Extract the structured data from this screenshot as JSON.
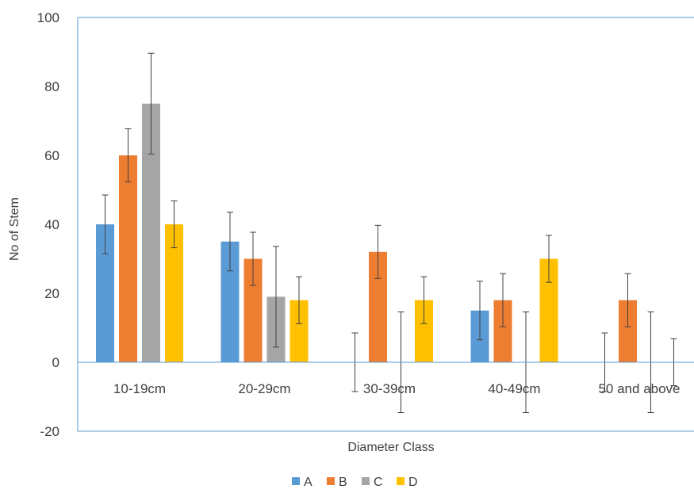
{
  "chart_data": {
    "type": "bar",
    "title": "",
    "xlabel": "Diameter Class",
    "ylabel": "No of Stem",
    "categories": [
      "10-19cm",
      "20-29cm",
      "30-39cm",
      "40-49cm",
      "50 and above"
    ],
    "ylim": [
      -20,
      100
    ],
    "yticks": [
      "-20",
      "0",
      "20",
      "40",
      "60",
      "80",
      "100"
    ],
    "grid": false,
    "legend_position": "bottom",
    "series": [
      {
        "name": "A",
        "color": "#5B9BD5",
        "values": [
          40,
          35,
          0,
          15,
          0
        ],
        "error": [
          8.5,
          8.5,
          8.5,
          8.5,
          8.5
        ]
      },
      {
        "name": "B",
        "color": "#ED7D31",
        "values": [
          60,
          30,
          32,
          18,
          18
        ],
        "error": [
          7.7,
          7.7,
          7.7,
          7.7,
          7.7
        ]
      },
      {
        "name": "C",
        "color": "#A5A5A5",
        "values": [
          75,
          19,
          0,
          0,
          0
        ],
        "error": [
          14.6,
          14.6,
          14.6,
          14.6,
          14.6
        ]
      },
      {
        "name": "D",
        "color": "#FFC000",
        "values": [
          40,
          18,
          18,
          30,
          0
        ],
        "error": [
          6.8,
          6.8,
          6.8,
          6.8,
          6.8
        ]
      }
    ]
  }
}
